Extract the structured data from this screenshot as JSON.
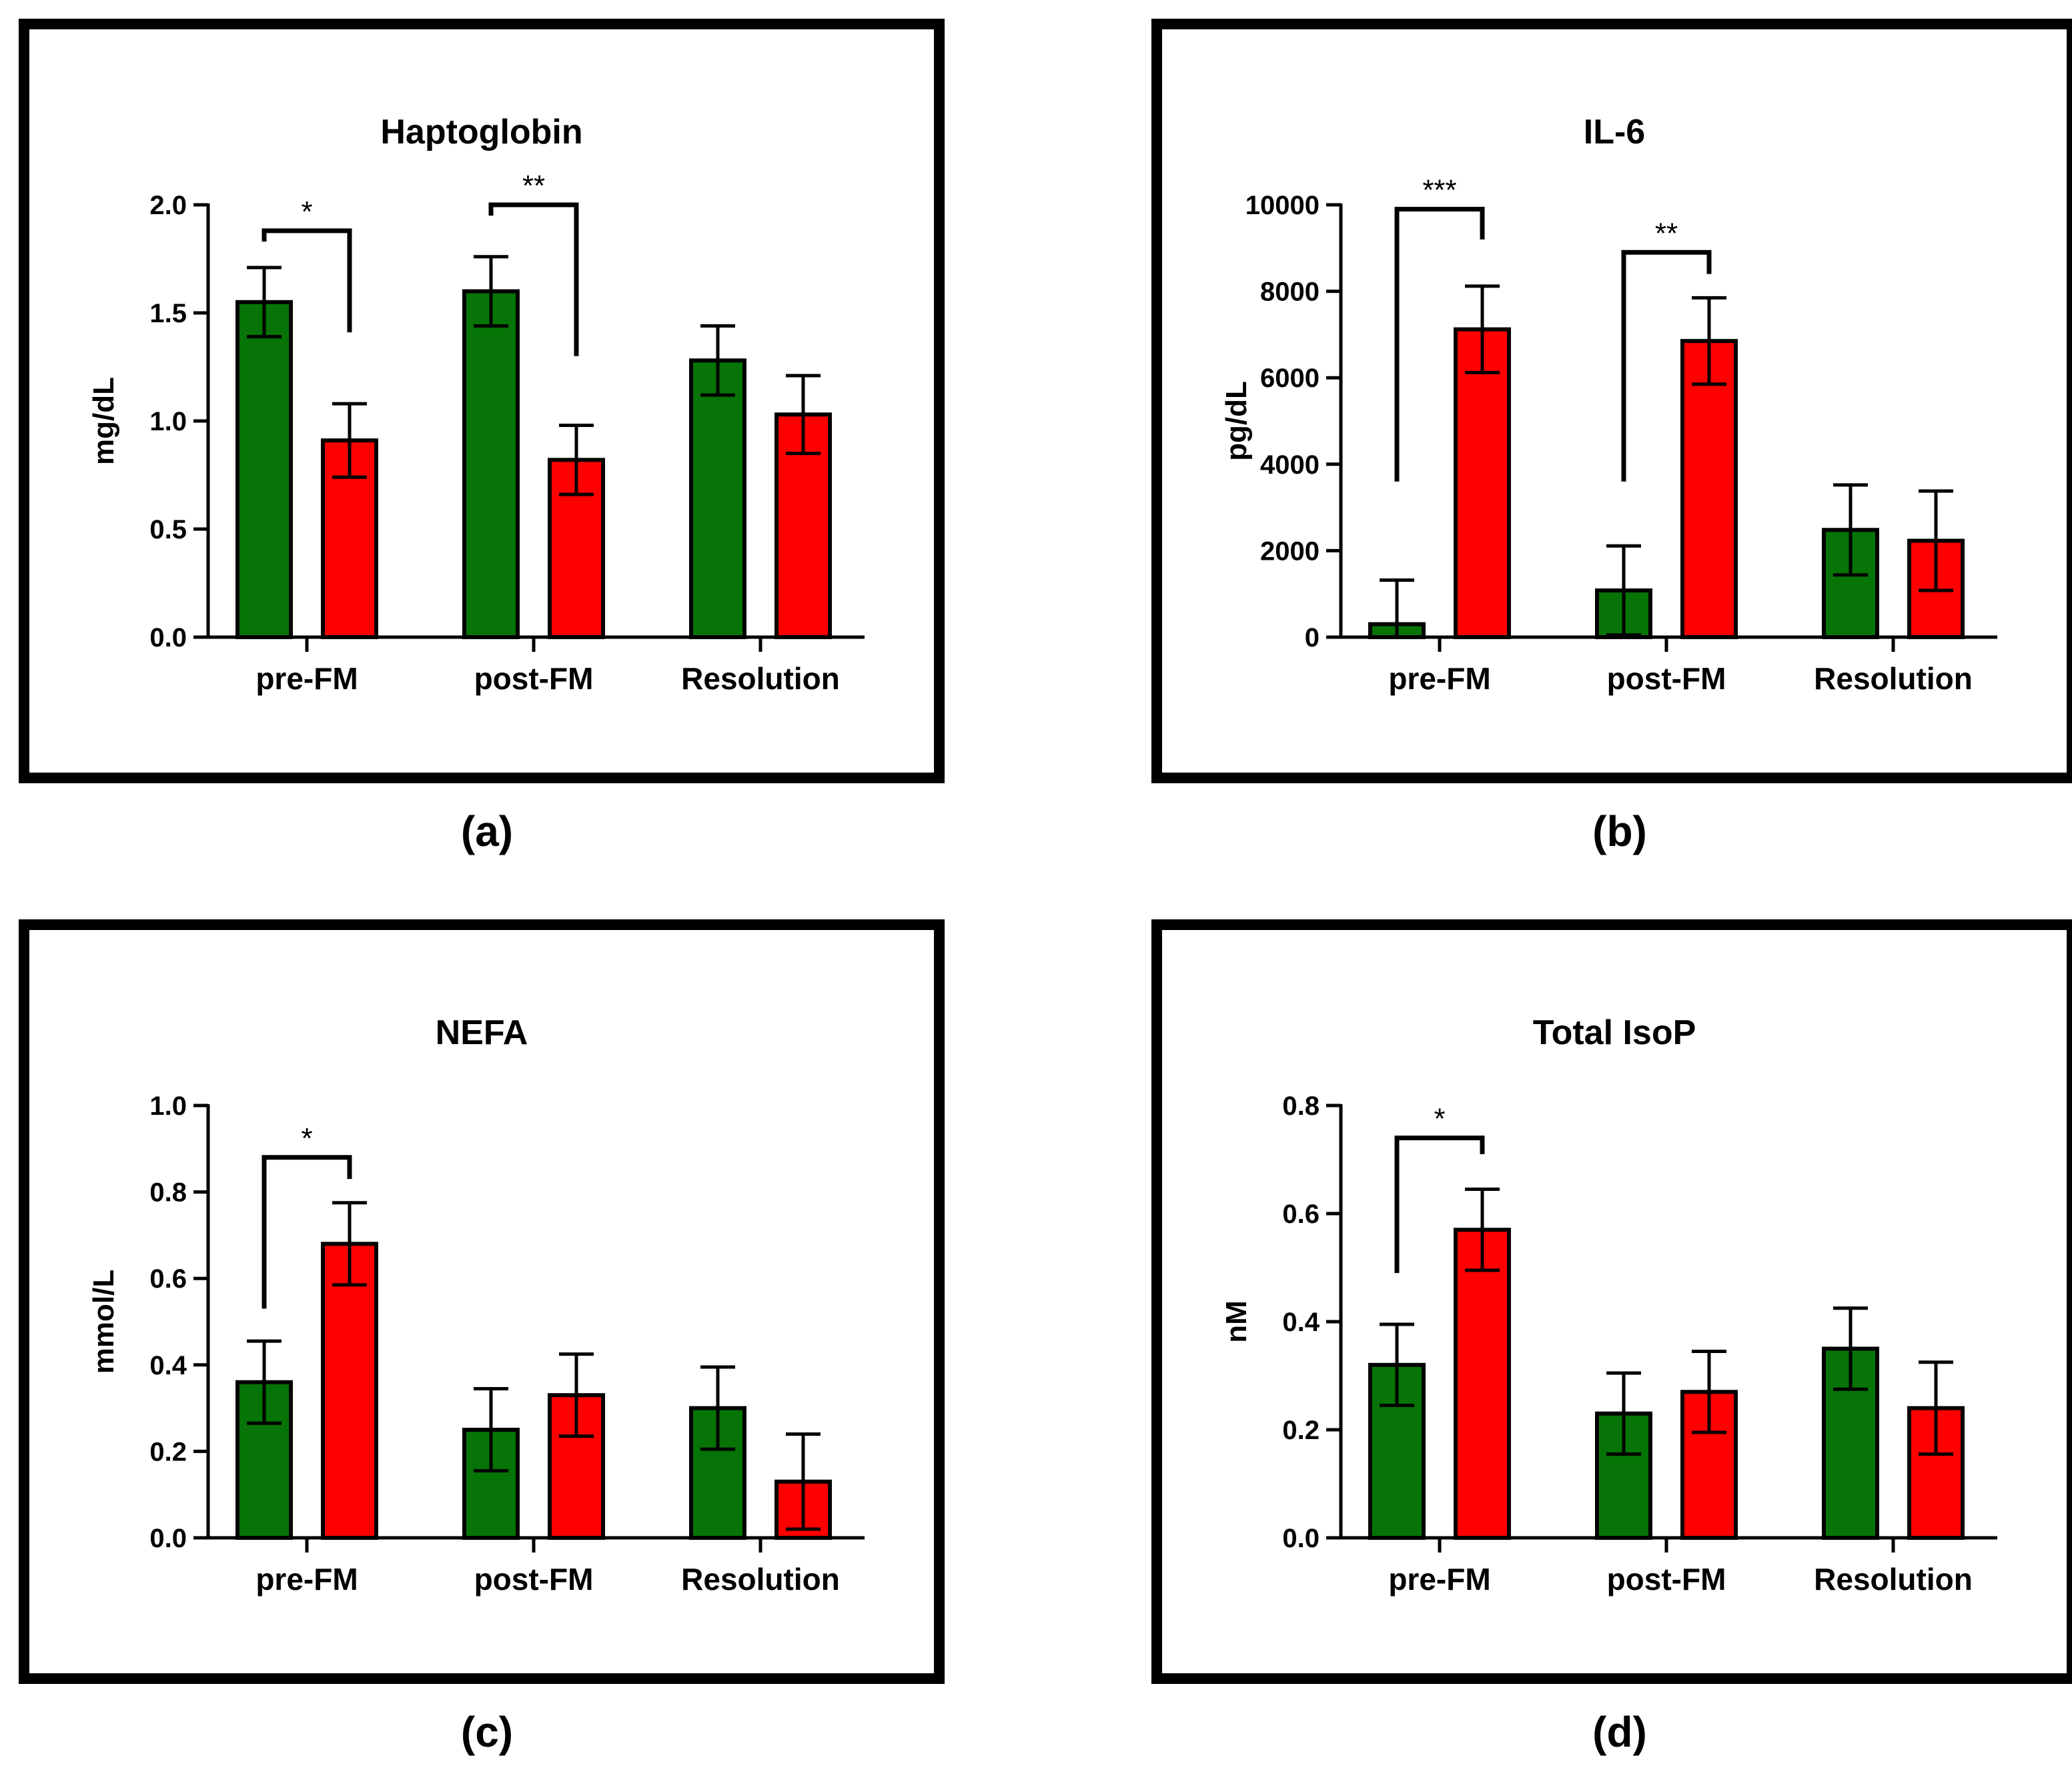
{
  "colors": {
    "green": "#067406",
    "red": "#fe0000",
    "frame": "#000000"
  },
  "chart_data": [
    {
      "type": "bar",
      "panel_label": "(a)",
      "title": "Haptoglobin",
      "ylabel": "mg/dL",
      "xlabel": "",
      "categories": [
        "pre-FM",
        "post-FM",
        "Resolution"
      ],
      "ylim": [
        0,
        2.0
      ],
      "yticks": [
        "0.0",
        "0.5",
        "1.0",
        "1.5",
        "2.0"
      ],
      "series": [
        {
          "name": "green",
          "values": [
            1.55,
            1.6,
            1.28
          ],
          "errors": [
            0.16,
            0.16,
            0.16
          ]
        },
        {
          "name": "red",
          "values": [
            0.91,
            0.82,
            1.03
          ],
          "errors": [
            0.17,
            0.16,
            0.18
          ]
        }
      ],
      "significance": [
        {
          "category": 0,
          "label": "*",
          "level": 1.88,
          "left_end": 1.83,
          "right_end": 1.41
        },
        {
          "category": 1,
          "label": "**",
          "level": 2.0,
          "left_end": 1.95,
          "right_end": 1.3
        }
      ]
    },
    {
      "type": "bar",
      "panel_label": "(b)",
      "title": "IL-6",
      "ylabel": "pg/dL",
      "xlabel": "",
      "categories": [
        "pre-FM",
        "post-FM",
        "Resolution"
      ],
      "ylim": [
        0,
        10000
      ],
      "yticks": [
        "0",
        "2000",
        "4000",
        "6000",
        "8000",
        "10000"
      ],
      "series": [
        {
          "name": "green",
          "values": [
            300,
            1080,
            2480
          ],
          "errors": [
            1020,
            1030,
            1040
          ]
        },
        {
          "name": "red",
          "values": [
            7120,
            6850,
            2230
          ],
          "errors": [
            1000,
            1000,
            1150
          ]
        }
      ],
      "significance": [
        {
          "category": 0,
          "label": "***",
          "level": 9900,
          "left_end": 3600,
          "right_end": 9200
        },
        {
          "category": 1,
          "label": "**",
          "level": 8900,
          "left_end": 3600,
          "right_end": 8400
        }
      ]
    },
    {
      "type": "bar",
      "panel_label": "(c)",
      "title": "NEFA",
      "ylabel": "mmol/L",
      "xlabel": "",
      "categories": [
        "pre-FM",
        "post-FM",
        "Resolution"
      ],
      "ylim": [
        0,
        1.0
      ],
      "yticks": [
        "0.0",
        "0.2",
        "0.4",
        "0.6",
        "0.8",
        "1.0"
      ],
      "series": [
        {
          "name": "green",
          "values": [
            0.36,
            0.25,
            0.3
          ],
          "errors": [
            0.095,
            0.095,
            0.095
          ]
        },
        {
          "name": "red",
          "values": [
            0.68,
            0.33,
            0.13
          ],
          "errors": [
            0.095,
            0.095,
            0.11
          ]
        }
      ],
      "significance": [
        {
          "category": 0,
          "label": "*",
          "level": 0.88,
          "left_end": 0.53,
          "right_end": 0.83
        }
      ]
    },
    {
      "type": "bar",
      "panel_label": "(d)",
      "title": "Total IsoP",
      "ylabel": "nM",
      "xlabel": "",
      "categories": [
        "pre-FM",
        "post-FM",
        "Resolution"
      ],
      "ylim": [
        0,
        0.8
      ],
      "yticks": [
        "0.0",
        "0.2",
        "0.4",
        "0.6",
        "0.8"
      ],
      "series": [
        {
          "name": "green",
          "values": [
            0.32,
            0.23,
            0.35
          ],
          "errors": [
            0.075,
            0.075,
            0.075
          ]
        },
        {
          "name": "red",
          "values": [
            0.57,
            0.27,
            0.24
          ],
          "errors": [
            0.075,
            0.075,
            0.085
          ]
        }
      ],
      "significance": [
        {
          "category": 0,
          "label": "*",
          "level": 0.74,
          "left_end": 0.49,
          "right_end": 0.71
        }
      ]
    }
  ]
}
